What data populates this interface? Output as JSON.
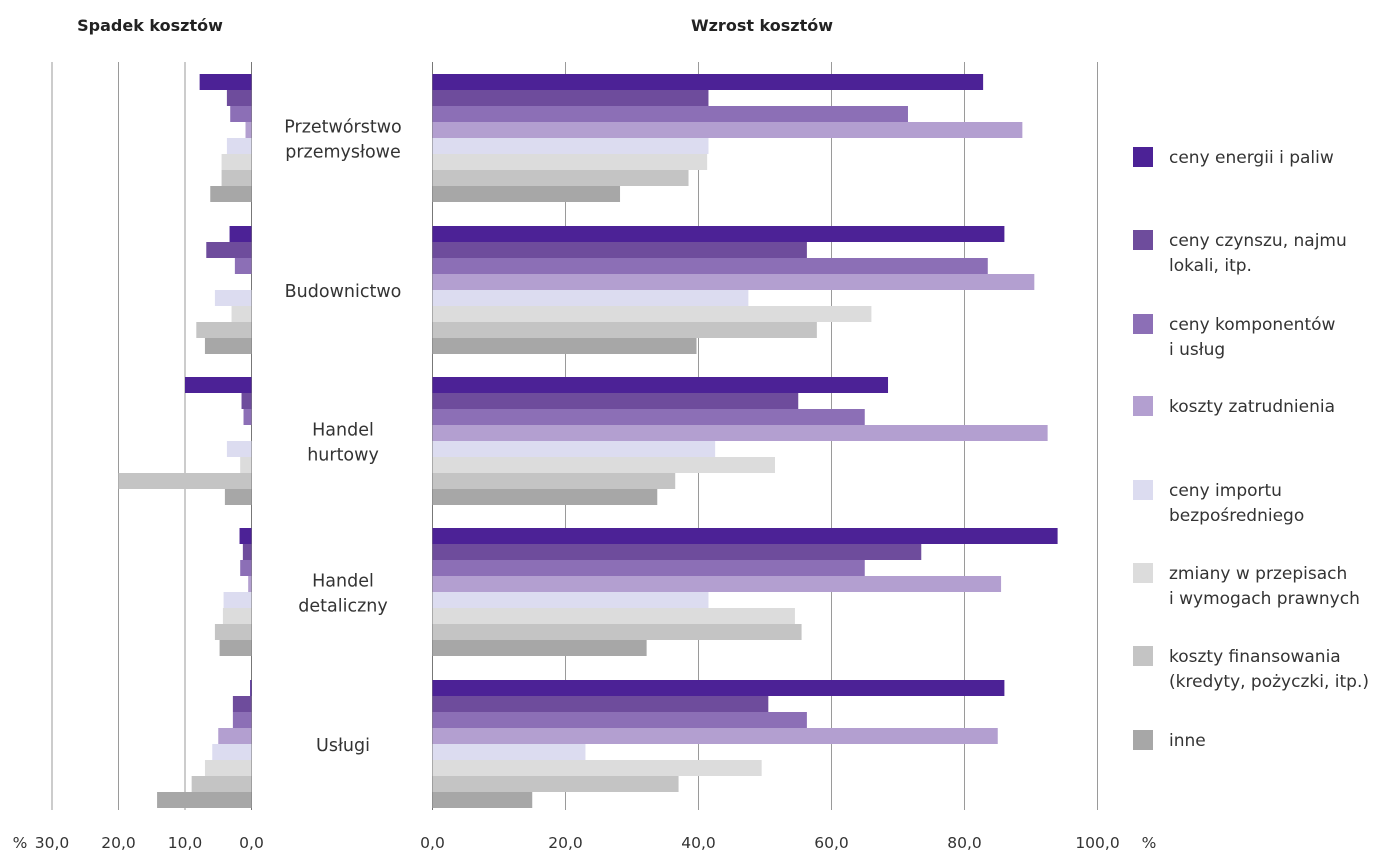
{
  "chart_data": {
    "type": "bar",
    "orientation": "horizontal",
    "panels": [
      {
        "title": "Spadek kosztów",
        "direction": "reversed",
        "xlim": [
          0,
          30
        ],
        "xticks": [
          "30,0",
          "20,0",
          "10,0",
          "0,0"
        ],
        "unit": "%"
      },
      {
        "title": "Wzrost kosztów",
        "direction": "normal",
        "xlim": [
          0,
          100
        ],
        "xticks": [
          "0,0",
          "20,0",
          "40,0",
          "60,0",
          "80,0",
          "100,0"
        ],
        "unit": "%"
      }
    ],
    "categories": [
      {
        "lines": [
          "Przetwórstwo",
          "przemysłowe"
        ]
      },
      {
        "lines": [
          "Budownictwo"
        ]
      },
      {
        "lines": [
          "Handel",
          "hurtowy"
        ]
      },
      {
        "lines": [
          "Handel",
          "detaliczny"
        ]
      },
      {
        "lines": [
          "Usługi"
        ]
      }
    ],
    "series": [
      {
        "name": "ceny energii i paliw",
        "color": "#4c2296",
        "decrease": [
          7.8,
          3.3,
          10.0,
          1.8,
          0.2
        ],
        "increase": [
          82.8,
          86.0,
          68.5,
          94.0,
          86.0
        ]
      },
      {
        "name": "ceny czynszu, najmu lokali, itp.",
        "color": "#6e4c9c",
        "decrease": [
          3.7,
          6.8,
          1.5,
          1.3,
          2.8
        ],
        "increase": [
          41.5,
          56.3,
          55.0,
          73.5,
          50.5
        ]
      },
      {
        "name": "ceny komponentów i usług",
        "color": "#8c6fb6",
        "decrease": [
          3.2,
          2.5,
          1.2,
          1.7,
          2.8
        ],
        "increase": [
          71.5,
          83.5,
          65.0,
          65.0,
          56.3
        ]
      },
      {
        "name": "koszty zatrudnienia",
        "color": "#b39fd0",
        "decrease": [
          0.9,
          0.0,
          0.0,
          0.5,
          5.0
        ],
        "increase": [
          88.7,
          90.5,
          92.5,
          85.5,
          85.0
        ]
      },
      {
        "name": "ceny importu bezpośredniego",
        "color": "#dcdcf0",
        "decrease": [
          3.7,
          5.5,
          3.7,
          4.2,
          5.9
        ],
        "increase": [
          41.5,
          47.5,
          42.5,
          41.5,
          23.0
        ]
      },
      {
        "name": "zmiany w przepisach i wymogach prawnych",
        "color": "#dcdcdc",
        "decrease": [
          4.5,
          3.0,
          1.7,
          4.3,
          7.0
        ],
        "increase": [
          41.3,
          66.0,
          51.5,
          54.5,
          49.5
        ]
      },
      {
        "name": "koszty finansowania (kredyty, pożyczki, itp.)",
        "color": "#c4c4c4",
        "decrease": [
          4.5,
          8.3,
          20.0,
          5.5,
          9.0
        ],
        "increase": [
          38.5,
          57.8,
          36.5,
          55.5,
          37.0
        ]
      },
      {
        "name": "inne",
        "color": "#a7a7a7",
        "decrease": [
          6.2,
          7.0,
          4.0,
          4.8,
          14.2
        ],
        "increase": [
          28.2,
          39.7,
          33.8,
          32.2,
          15.0
        ]
      }
    ],
    "legend": {
      "position": "right",
      "items": [
        {
          "lines": [
            "ceny energii i paliw"
          ],
          "color": "#4c2296"
        },
        {
          "lines": [
            "ceny czynszu, najmu",
            "lokali, itp."
          ],
          "color": "#6e4c9c"
        },
        {
          "lines": [
            "ceny komponentów",
            "i usług"
          ],
          "color": "#8c6fb6"
        },
        {
          "lines": [
            "koszty zatrudnienia"
          ],
          "color": "#b39fd0"
        },
        {
          "lines": [
            "ceny importu",
            "bezpośredniego"
          ],
          "color": "#dcdcf0"
        },
        {
          "lines": [
            "zmiany w przepisach",
            "i wymogach prawnych"
          ],
          "color": "#dcdcdc"
        },
        {
          "lines": [
            "koszty finansowania",
            "(kredyty, pożyczki, itp.)"
          ],
          "color": "#c4c4c4"
        },
        {
          "lines": [
            "inne"
          ],
          "color": "#a7a7a7"
        }
      ]
    },
    "grid": true
  }
}
